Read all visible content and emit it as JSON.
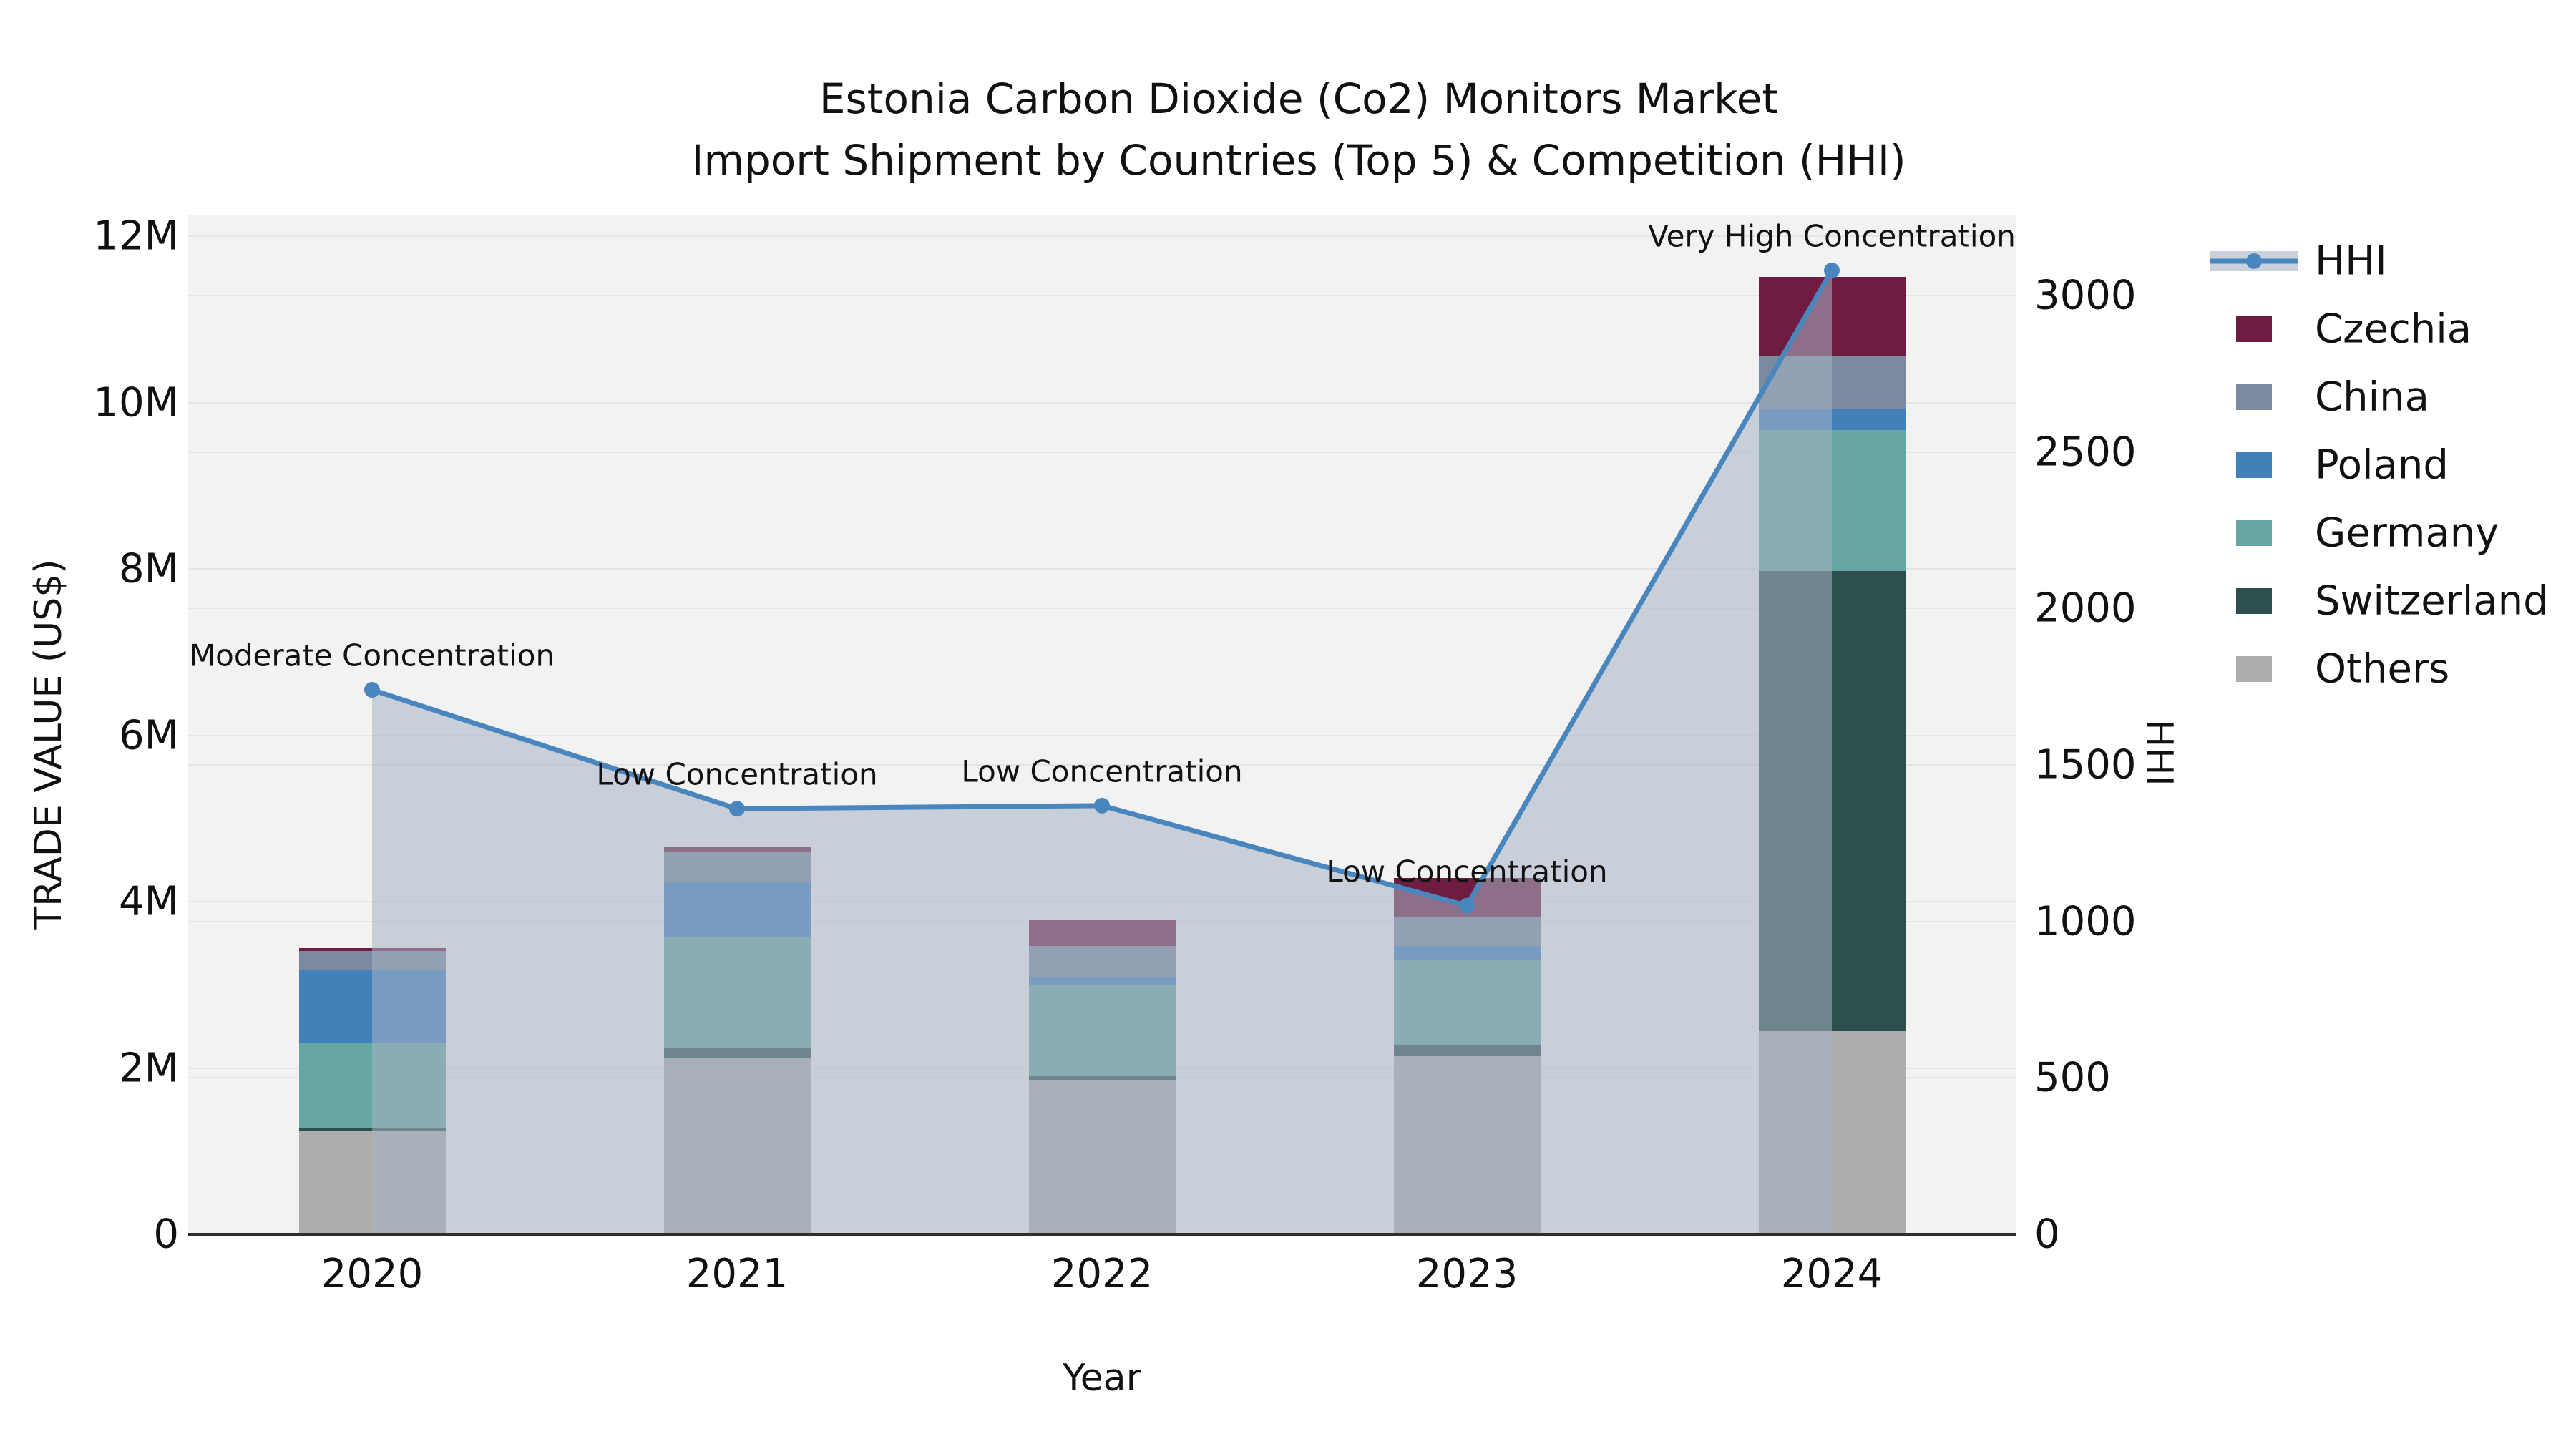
{
  "title": {
    "line1": "Estonia Carbon Dioxide (Co2) Monitors Market",
    "line2": "Import Shipment by Countries (Top 5) & Competition (HHI)"
  },
  "axes": {
    "x_label": "Year",
    "y_left_label": "TRADE VALUE (US$)",
    "y_right_label": "HHI",
    "y_left_ticks": [
      "0",
      "2M",
      "4M",
      "6M",
      "8M",
      "10M",
      "12M"
    ],
    "y_left_tick_values": [
      0,
      2,
      4,
      6,
      8,
      10,
      12
    ],
    "y_right_ticks": [
      "0",
      "500",
      "1000",
      "1500",
      "2000",
      "2500",
      "3000"
    ],
    "y_right_tick_values": [
      0,
      500,
      1000,
      1500,
      2000,
      2500,
      3000
    ],
    "x_ticks": [
      "2020",
      "2021",
      "2022",
      "2023",
      "2024"
    ]
  },
  "legend": {
    "hhi_label": "HHI",
    "entries": [
      {
        "label": "Czechia",
        "color": "#6E1D41"
      },
      {
        "label": "China",
        "color": "#7B8A9E"
      },
      {
        "label": "Poland",
        "color": "#4380BA"
      },
      {
        "label": "Germany",
        "color": "#66A6A3"
      },
      {
        "label": "Switzerland",
        "color": "#2C4F4B"
      },
      {
        "label": "Others",
        "color": "#ACAEAD"
      }
    ]
  },
  "colors": {
    "hhi_line": "#4A86BE",
    "hhi_area_fill": "rgba(167,179,197,0.55)",
    "hhi_legend_band": "#C9D1DC",
    "plot_background": "#f2f2f2",
    "gridline": "#e4e4e4",
    "axis_spine": "#2e2e2e"
  },
  "chart_data": {
    "type": "bar",
    "subtype": "stacked-bars-with-line",
    "title": "Estonia Carbon Dioxide (Co2) Monitors Market — Import Shipment by Countries (Top 5) & Competition (HHI)",
    "xlabel": "Year",
    "ylabel_left": "TRADE VALUE (US$)",
    "ylabel_right": "HHI",
    "categories": [
      "2020",
      "2021",
      "2022",
      "2023",
      "2024"
    ],
    "ylim_left_musd": [
      0,
      12.26
    ],
    "ylim_right_hhi": [
      0,
      3260
    ],
    "grid": true,
    "legend_position": "right",
    "series_unit": "US$ millions",
    "series": [
      {
        "name": "Czechia",
        "values": [
          0.03,
          0.05,
          0.31,
          0.46,
          0.95
        ]
      },
      {
        "name": "China",
        "values": [
          0.24,
          0.36,
          0.37,
          0.35,
          0.63
        ]
      },
      {
        "name": "Poland",
        "values": [
          0.87,
          0.66,
          0.1,
          0.17,
          0.26
        ]
      },
      {
        "name": "Germany",
        "values": [
          1.03,
          1.34,
          1.1,
          1.03,
          1.7
        ]
      },
      {
        "name": "Switzerland",
        "values": [
          0.03,
          0.12,
          0.04,
          0.13,
          5.53
        ]
      },
      {
        "name": "Others",
        "values": [
          1.24,
          2.12,
          1.86,
          2.14,
          2.44
        ]
      }
    ],
    "stack_order_bottom_to_top": [
      "Others",
      "Switzerland",
      "Germany",
      "Poland",
      "China",
      "Czechia"
    ],
    "totals_musd": [
      3.44,
      4.65,
      3.78,
      4.28,
      11.51
    ],
    "hhi_line": {
      "name": "HHI",
      "values": [
        1740,
        1360,
        1370,
        1050,
        3080
      ],
      "annotations": [
        "Moderate Concentration",
        "Low Concentration",
        "Low Concentration",
        "Low Concentration",
        "Very High Concentration"
      ]
    }
  }
}
